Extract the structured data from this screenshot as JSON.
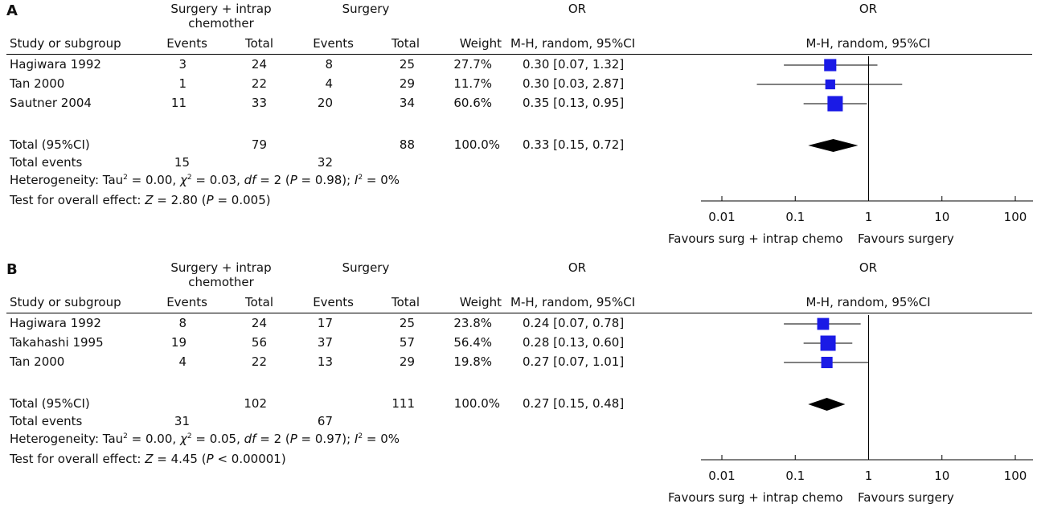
{
  "panels": [
    {
      "letter": "A",
      "group1_header": "Surgery + intrap chemother",
      "group1_line1": "Surgery + intrap",
      "group1_line2": "chemother",
      "group2_header": "Surgery",
      "or_header": "OR",
      "or_plot_header": "OR",
      "col_study": "Study or subgroup",
      "col_events1": "Events",
      "col_total1": "Total",
      "col_events2": "Events",
      "col_total2": "Total",
      "col_weight": "Weight",
      "col_method": "M-H, random, 95%CI",
      "col_plot_method": "M-H, random, 95%CI",
      "studies": [
        {
          "name": "Hagiwara 1992",
          "e1": "3",
          "t1": "24",
          "e2": "8",
          "t2": "25",
          "weight": "27.7%",
          "ci": "0.30 [0.07, 1.32]"
        },
        {
          "name": "Tan 2000",
          "e1": "1",
          "t1": "22",
          "e2": "4",
          "t2": "29",
          "weight": "11.7%",
          "ci": "0.30 [0.03, 2.87]"
        },
        {
          "name": "Sautner 2004",
          "e1": "11",
          "t1": "33",
          "e2": "20",
          "t2": "34",
          "weight": "60.6%",
          "ci": "0.35 [0.13, 0.95]"
        }
      ],
      "total": {
        "label": "Total (95%CI)",
        "t1": "79",
        "t2": "88",
        "weight": "100.0%",
        "ci": "0.33 [0.15, 0.72]"
      },
      "events": {
        "label": "Total events",
        "e1": "15",
        "e2": "32"
      },
      "heterogeneity": {
        "prefix": "Heterogeneity: Tau",
        "tau2": "0.00",
        "chi2": "0.03",
        "df": "2",
        "p": "0.98",
        "i2": "0%"
      },
      "overall": {
        "prefix": "Test for overall effect: ",
        "z": "2.80",
        "p_op": "=",
        "p": "0.005"
      },
      "axis_ticks": [
        "0.01",
        "0.1",
        "1",
        "10",
        "100"
      ],
      "favours_left": "Favours surg + intrap chemo",
      "favours_right": "Favours surgery"
    },
    {
      "letter": "B",
      "group1_header": "Surgery + intrap chemother",
      "group1_line1": "Surgery + intrap",
      "group1_line2": "chemother",
      "group2_header": "Surgery",
      "or_header": "OR",
      "or_plot_header": "OR",
      "col_study": "Study or subgroup",
      "col_events1": "Events",
      "col_total1": "Total",
      "col_events2": "Events",
      "col_total2": "Total",
      "col_weight": "Weight",
      "col_method": "M-H, random, 95%CI",
      "col_plot_method": "M-H, random, 95%CI",
      "studies": [
        {
          "name": "Hagiwara 1992",
          "e1": "8",
          "t1": "24",
          "e2": "17",
          "t2": "25",
          "weight": "23.8%",
          "ci": "0.24 [0.07, 0.78]"
        },
        {
          "name": "Takahashi 1995",
          "e1": "19",
          "t1": "56",
          "e2": "37",
          "t2": "57",
          "weight": "56.4%",
          "ci": "0.28 [0.13, 0.60]"
        },
        {
          "name": "Tan 2000",
          "e1": "4",
          "t1": "22",
          "e2": "13",
          "t2": "29",
          "weight": "19.8%",
          "ci": "0.27 [0.07, 1.01]"
        }
      ],
      "total": {
        "label": "Total (95%CI)",
        "t1": "102",
        "t2": "111",
        "weight": "100.0%",
        "ci": "0.27 [0.15, 0.48]"
      },
      "events": {
        "label": "Total events",
        "e1": "31",
        "e2": "67"
      },
      "heterogeneity": {
        "prefix": "Heterogeneity: Tau",
        "tau2": "0.00",
        "chi2": "0.05",
        "df": "2",
        "p": "0.97",
        "i2": "0%"
      },
      "overall": {
        "prefix": "Test for overall effect: ",
        "z": "4.45",
        "p_op": "<",
        "p": "0.00001"
      },
      "axis_ticks": [
        "0.01",
        "0.1",
        "1",
        "10",
        "100"
      ],
      "favours_left": "Favours surg + intrap chemo",
      "favours_right": "Favours surgery"
    }
  ],
  "chart_data": [
    {
      "type": "forest",
      "panel": "A",
      "scale": "log",
      "xlim": [
        0.01,
        100
      ],
      "reference_line": 1,
      "studies": [
        {
          "name": "Hagiwara 1992",
          "or": 0.3,
          "ci_low": 0.07,
          "ci_high": 1.32,
          "weight": 27.7
        },
        {
          "name": "Tan 2000",
          "or": 0.3,
          "ci_low": 0.03,
          "ci_high": 2.87,
          "weight": 11.7
        },
        {
          "name": "Sautner 2004",
          "or": 0.35,
          "ci_low": 0.13,
          "ci_high": 0.95,
          "weight": 60.6
        }
      ],
      "pooled": {
        "or": 0.33,
        "ci_low": 0.15,
        "ci_high": 0.72
      }
    },
    {
      "type": "forest",
      "panel": "B",
      "scale": "log",
      "xlim": [
        0.01,
        100
      ],
      "reference_line": 1,
      "studies": [
        {
          "name": "Hagiwara 1992",
          "or": 0.24,
          "ci_low": 0.07,
          "ci_high": 0.78,
          "weight": 23.8
        },
        {
          "name": "Takahashi 1995",
          "or": 0.28,
          "ci_low": 0.13,
          "ci_high": 0.6,
          "weight": 56.4
        },
        {
          "name": "Tan 2000",
          "or": 0.27,
          "ci_low": 0.07,
          "ci_high": 1.01,
          "weight": 19.8
        }
      ],
      "pooled": {
        "or": 0.27,
        "ci_low": 0.15,
        "ci_high": 0.48
      }
    }
  ],
  "colors": {
    "marker": "#1a1ae6",
    "text": "#111111",
    "line": "#000000"
  }
}
